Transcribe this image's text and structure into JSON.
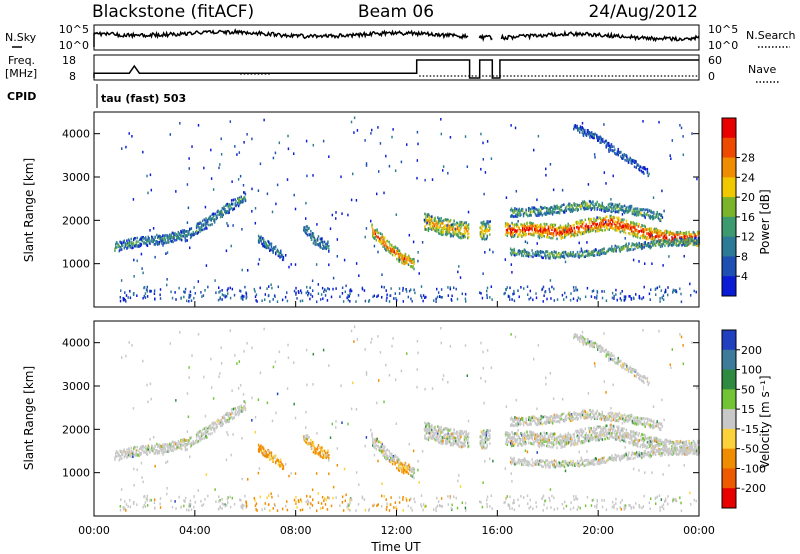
{
  "header": {
    "radar": "Blackstone (fitACF)",
    "beam": "Beam 06",
    "date": "24/Aug/2012"
  },
  "strips": {
    "nsky": {
      "label": "N.Sky",
      "ticks": [
        "10^5",
        "10^0"
      ],
      "right_ticks": [
        "10^5",
        "10^0"
      ],
      "right_label": "N.Search"
    },
    "freq": {
      "label_line1": "Freq.",
      "label_line2": "[MHz]",
      "ticks": [
        "18",
        "8"
      ],
      "right_ticks": [
        "60",
        "0"
      ],
      "right_label": "Nave"
    },
    "cpid": {
      "label": "CPID",
      "program": "tau (fast) 503"
    }
  },
  "chart_data": [
    {
      "type": "heatmap",
      "name": "power",
      "ylabel": "Slant Range [km]",
      "ylim": [
        0,
        4500
      ],
      "yticks": [
        1000,
        2000,
        3000,
        4000
      ],
      "colorbar": {
        "label": "Power [dB]",
        "ticks": [
          4,
          8,
          12,
          16,
          20,
          24,
          28
        ],
        "colors": [
          "#0a1bd6",
          "#1e50b4",
          "#2c7a96",
          "#3c9a6e",
          "#7ab42a",
          "#f0c800",
          "#f08c00",
          "#ee4a00",
          "#e80000"
        ]
      },
      "bands": [
        {
          "x": [
            0.8,
            1.5,
            2.2,
            3.0,
            3.6
          ],
          "y": [
            1400,
            1500,
            1560,
            1620,
            1700
          ],
          "w": 220,
          "level": 0.28
        },
        {
          "x": [
            3.6,
            4.2,
            4.8,
            5.4,
            6.0
          ],
          "y": [
            1650,
            1880,
            2100,
            2350,
            2600
          ],
          "w": 240,
          "level": 0.3
        },
        {
          "x": [
            6.5,
            7.0,
            7.5
          ],
          "y": [
            1600,
            1400,
            1200
          ],
          "w": 200,
          "level": 0.25
        },
        {
          "x": [
            8.3,
            8.7,
            9.3
          ],
          "y": [
            1900,
            1600,
            1400
          ],
          "w": 250,
          "level": 0.3
        },
        {
          "x": [
            11.0,
            11.6,
            12.2,
            12.7
          ],
          "y": [
            1800,
            1450,
            1150,
            1000
          ],
          "w": 280,
          "level": 0.72
        },
        {
          "x": [
            13.1,
            13.8,
            14.6,
            14.9
          ],
          "y": [
            2000,
            1880,
            1800,
            1780
          ],
          "w": 380,
          "level": 0.62
        },
        {
          "x": [
            15.3,
            15.7
          ],
          "y": [
            1800,
            1800
          ],
          "w": 420,
          "level": 0.55
        },
        {
          "x": [
            16.3,
            17.5,
            18.5,
            19.5,
            20.5,
            21.5,
            22.5,
            23.5,
            24.0
          ],
          "y": [
            1800,
            1820,
            1750,
            1900,
            1980,
            1800,
            1640,
            1600,
            1600
          ],
          "w": 320,
          "level": 0.82
        },
        {
          "x": [
            16.5,
            18.0,
            19.5,
            21.0,
            22.5,
            24.0
          ],
          "y": [
            1300,
            1230,
            1250,
            1400,
            1500,
            1550
          ],
          "w": 160,
          "level": 0.38
        },
        {
          "x": [
            16.5,
            18.0,
            19.5,
            21.0,
            22.5
          ],
          "y": [
            2200,
            2250,
            2380,
            2300,
            2100
          ],
          "w": 200,
          "level": 0.38
        },
        {
          "x": [
            19.0,
            20.0,
            21.0,
            22.0
          ],
          "y": [
            4200,
            3900,
            3500,
            3100
          ],
          "w": 160,
          "level": 0.18
        }
      ]
    },
    {
      "type": "heatmap",
      "name": "velocity",
      "xlabel": "Time UT",
      "ylabel": "Slant Range [km]",
      "xlim": [
        0,
        24
      ],
      "xticks": [
        "00:00",
        "04:00",
        "08:00",
        "12:00",
        "16:00",
        "20:00",
        "00:00"
      ],
      "ylim": [
        0,
        4500
      ],
      "yticks": [
        1000,
        2000,
        3000,
        4000
      ],
      "colorbar": {
        "label": "Velocity [m s⁻¹]",
        "ticks": [
          "200",
          "100",
          "50",
          "15",
          "-15",
          "-50",
          "-100",
          "-200"
        ],
        "colors": [
          "#2040c0",
          "#3e7a9a",
          "#2d8a40",
          "#72c436",
          "#c8c8c8",
          "#fbd23a",
          "#f08c00",
          "#ee5a00",
          "#e80000"
        ]
      }
    }
  ]
}
